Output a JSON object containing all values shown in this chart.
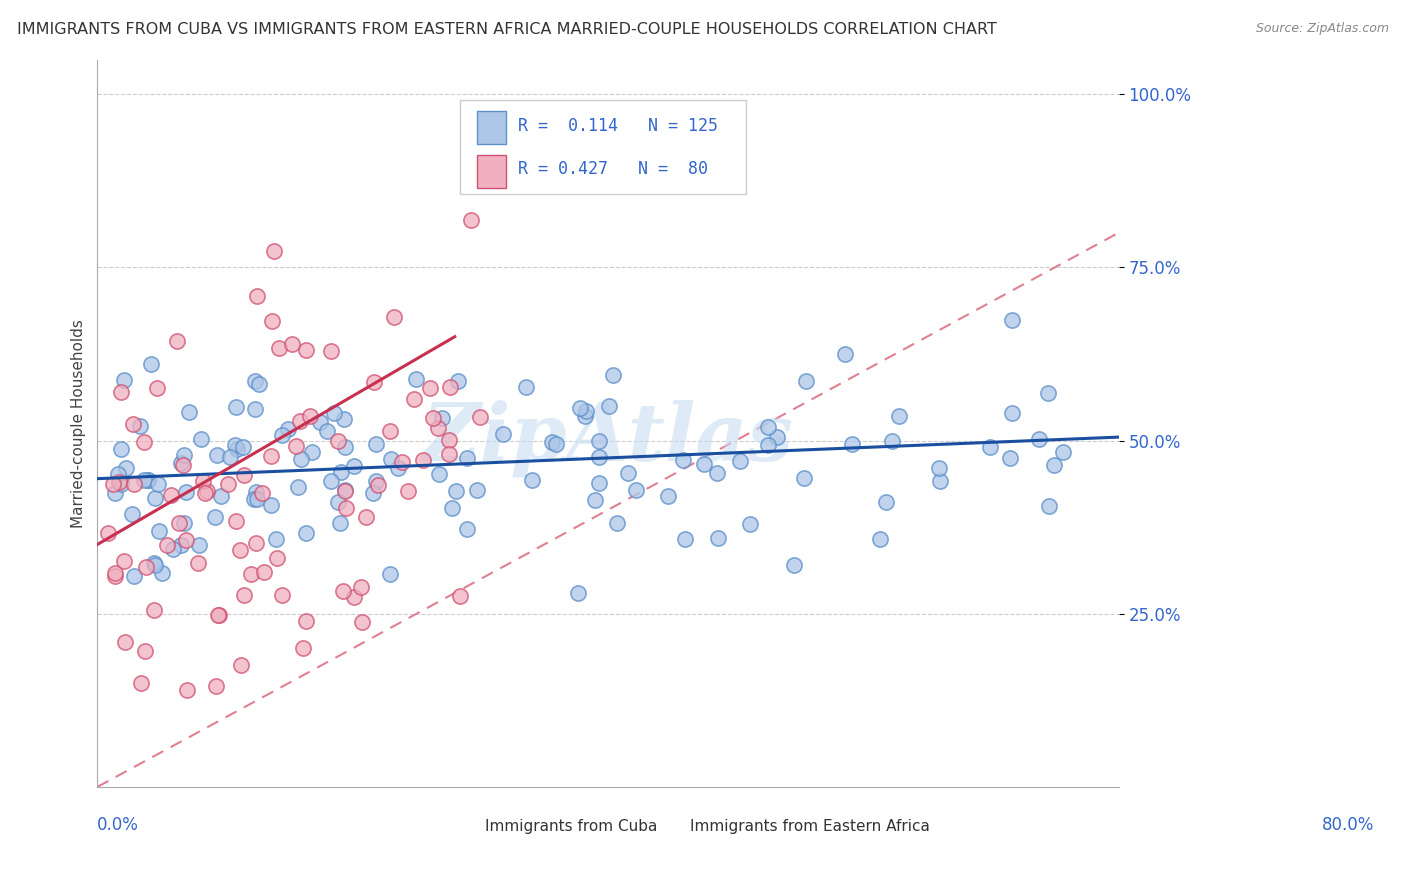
{
  "title": "IMMIGRANTS FROM CUBA VS IMMIGRANTS FROM EASTERN AFRICA MARRIED-COUPLE HOUSEHOLDS CORRELATION CHART",
  "source": "Source: ZipAtlas.com",
  "ylabel": "Married-couple Households",
  "ytick_labels": [
    "25.0%",
    "50.0%",
    "75.0%",
    "100.0%"
  ],
  "ytick_values": [
    0.25,
    0.5,
    0.75,
    1.0
  ],
  "xlim": [
    0.0,
    0.8
  ],
  "ylim": [
    0.0,
    1.05
  ],
  "R_cuba": 0.114,
  "N_cuba": 125,
  "R_eastern": 0.427,
  "N_eastern": 80,
  "color_cuba_fill": "#aec6e8",
  "color_cuba_edge": "#5b8fc9",
  "color_eastern_fill": "#f0b0c0",
  "color_eastern_edge": "#d05070",
  "color_cuba_line": "#1a4fa0",
  "color_eastern_line": "#c83050",
  "color_ref_line": "#e08090",
  "legend_text_color": "#3366cc",
  "title_color": "#333333",
  "title_fontsize": 11.5,
  "source_fontsize": 9,
  "axis_label_color": "#3366cc",
  "watermark": "ZipAtlas",
  "grid_color": "#cccccc",
  "blue_trend_y_start": 0.445,
  "blue_trend_y_end": 0.505,
  "pink_trend_x_start": 0.0,
  "pink_trend_x_end": 0.28,
  "pink_trend_y_start": 0.35,
  "pink_trend_y_end": 0.65
}
